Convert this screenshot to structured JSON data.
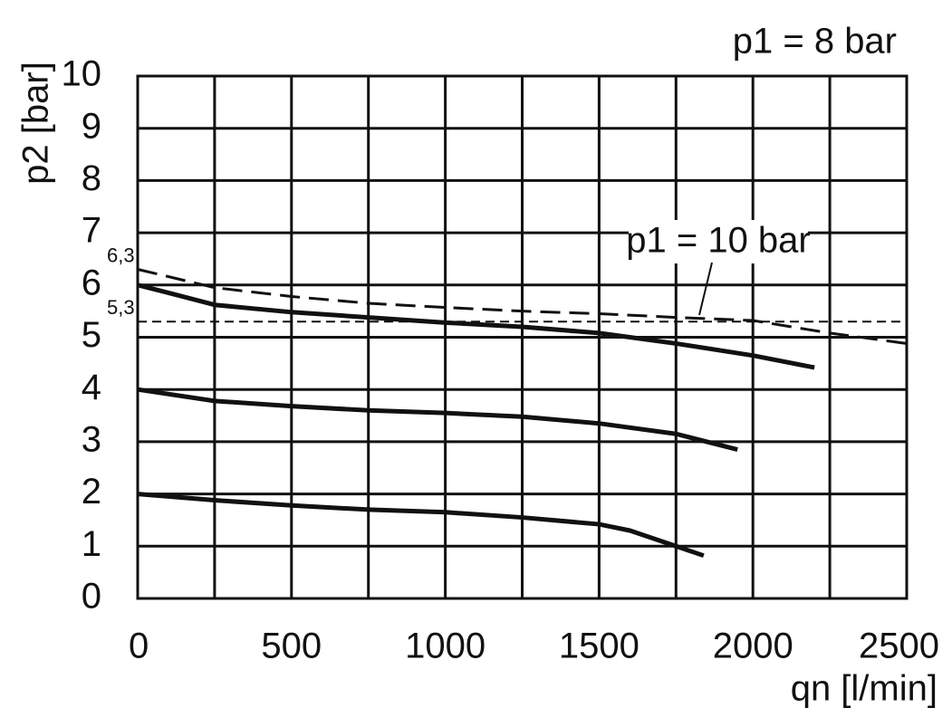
{
  "chart_data": {
    "type": "line",
    "annotations": [
      {
        "text": "p1 = 8 bar"
      },
      {
        "text": "p1 = 10 bar"
      }
    ],
    "xlabel": "qn [l/min]",
    "ylabel": "p2 [bar]",
    "xlim": [
      0,
      2500
    ],
    "ylim": [
      0,
      10
    ],
    "xticks": [
      0,
      500,
      1000,
      1500,
      2000,
      2500
    ],
    "xgrid": [
      0,
      250,
      500,
      750,
      1000,
      1250,
      1500,
      1750,
      2000,
      2250,
      2500
    ],
    "yticks": [
      0,
      1,
      2,
      3,
      4,
      5,
      6,
      7,
      8,
      9,
      10
    ],
    "grid": true,
    "marked_values": [
      {
        "value": 6.3,
        "label": "6,3",
        "line": false
      },
      {
        "value": 5.3,
        "label": "5,3",
        "line": true
      }
    ],
    "series": [
      {
        "color": "#111111",
        "dash": false,
        "x": [
          0,
          100,
          250,
          500,
          750,
          1000,
          1250,
          1500,
          1600,
          1750,
          2000,
          2200
        ],
        "values": [
          6,
          5.85,
          5.62,
          5.48,
          5.38,
          5.28,
          5.2,
          5.08,
          5.0,
          4.88,
          4.65,
          4.42
        ]
      },
      {
        "color": "#111111",
        "dash": false,
        "x": [
          0,
          250,
          500,
          750,
          1000,
          1250,
          1500,
          1750,
          1950
        ],
        "values": [
          4,
          3.78,
          3.68,
          3.6,
          3.55,
          3.48,
          3.35,
          3.15,
          2.85
        ]
      },
      {
        "color": "#111111",
        "dash": false,
        "x": [
          0,
          250,
          500,
          750,
          1000,
          1250,
          1500,
          1600,
          1750,
          1840
        ],
        "values": [
          2,
          1.88,
          1.78,
          1.7,
          1.65,
          1.55,
          1.42,
          1.3,
          1.0,
          0.82
        ]
      },
      {
        "color": "#111111",
        "dash": true,
        "x": [
          0,
          250,
          500,
          750,
          1000,
          1250,
          1500,
          1750,
          2000,
          2250,
          2500
        ],
        "values": [
          6.3,
          5.95,
          5.78,
          5.65,
          5.57,
          5.5,
          5.45,
          5.38,
          5.32,
          5.08,
          4.88
        ]
      }
    ]
  }
}
